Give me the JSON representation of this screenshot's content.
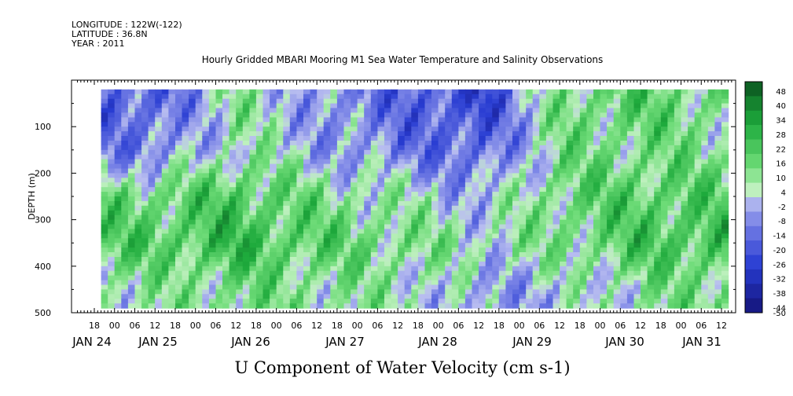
{
  "header": {
    "longitude": "LONGITUDE : 122W(-122)",
    "latitude": "LATITUDE : 36.8N",
    "year": "YEAR : 2011"
  },
  "chart_data": {
    "type": "heatmap",
    "title": "Hourly Gridded MBARI Mooring M1 Sea Water Temperature and Salinity Observations",
    "xlabel": "U Component of Water Velocity (cm s-1)",
    "ylabel": "DEPTH (m)",
    "y_ticks": [
      100,
      200,
      300,
      400,
      500
    ],
    "ylim": [
      500,
      0
    ],
    "y_inverted": true,
    "x_start_hour_label": "18",
    "x_hour_tick_labels": [
      "18",
      "00",
      "06",
      "12",
      "18",
      "00",
      "06",
      "12",
      "18",
      "00",
      "06",
      "12",
      "18",
      "00",
      "06",
      "12",
      "18",
      "00",
      "06",
      "12",
      "18",
      "00",
      "06",
      "12",
      "18",
      "00",
      "06",
      "12",
      "18",
      "00",
      "06",
      "12"
    ],
    "x_day_labels": [
      "JAN 24",
      "JAN 25",
      "JAN 26",
      "JAN 27",
      "JAN 28",
      "JAN 29",
      "JAN 30",
      "JAN 31"
    ],
    "colorbar": {
      "levels": [
        48,
        40,
        34,
        28,
        22,
        16,
        10,
        4,
        -2,
        -8,
        -14,
        -20,
        -26,
        -32,
        -38,
        -44,
        -50
      ],
      "range": [
        -50,
        48
      ]
    },
    "coverage_days": [
      "JAN 24",
      "JAN 25",
      "JAN 26",
      "JAN 27",
      "JAN 28",
      "JAN 29",
      "JAN 30",
      "JAN 31"
    ],
    "depth_coverage_m": [
      20,
      490
    ],
    "day_mean_u_profile": {
      "depths_m": [
        50,
        150,
        250,
        350,
        450
      ],
      "JAN 24": [
        -20,
        -14,
        12,
        16,
        4
      ],
      "JAN 25": [
        6,
        4,
        18,
        22,
        10
      ],
      "JAN 26": [
        -10,
        -6,
        8,
        14,
        6
      ],
      "JAN 27": [
        -18,
        -14,
        2,
        10,
        4
      ],
      "JAN 28": [
        -28,
        -20,
        -6,
        2,
        -8
      ],
      "JAN 29": [
        10,
        8,
        12,
        8,
        -4
      ],
      "JAN 30": [
        14,
        10,
        16,
        18,
        6
      ],
      "JAN 31": [
        8,
        6,
        14,
        20,
        10
      ]
    }
  }
}
